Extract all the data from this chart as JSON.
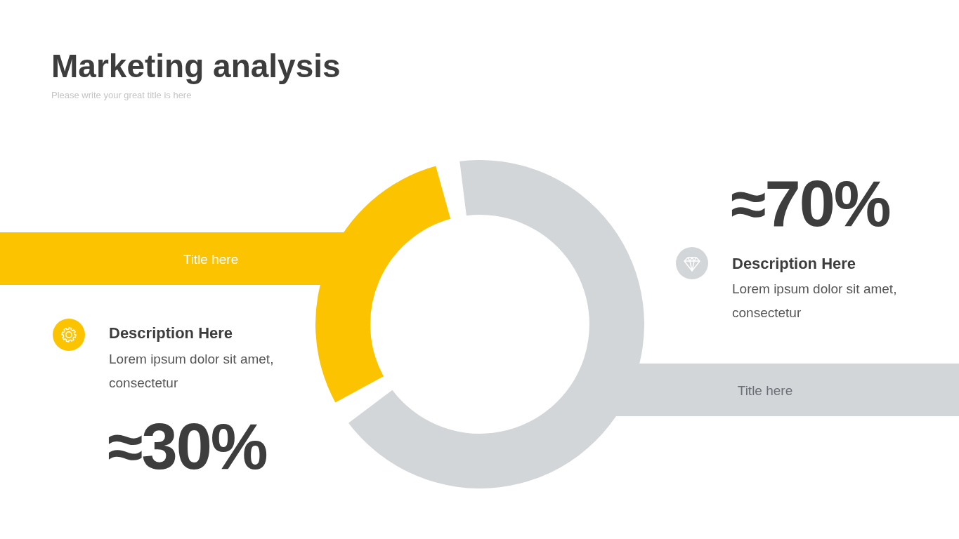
{
  "chart_data": {
    "type": "donut",
    "title": "Marketing analysis",
    "subtitle": "Please write your great title is here",
    "categories": [
      "Title here",
      "Title here"
    ],
    "values": [
      30,
      70
    ],
    "colors": [
      "#fcc400",
      "#d3d6d9"
    ],
    "value_labels": [
      "≈30%",
      "≈70%"
    ],
    "annotations": [
      "Description Here",
      "Lorem ipsum dolor sit amet, consectetur",
      "Description Here",
      "Lorem ipsum dolor sit amet, consectetur"
    ]
  }
}
